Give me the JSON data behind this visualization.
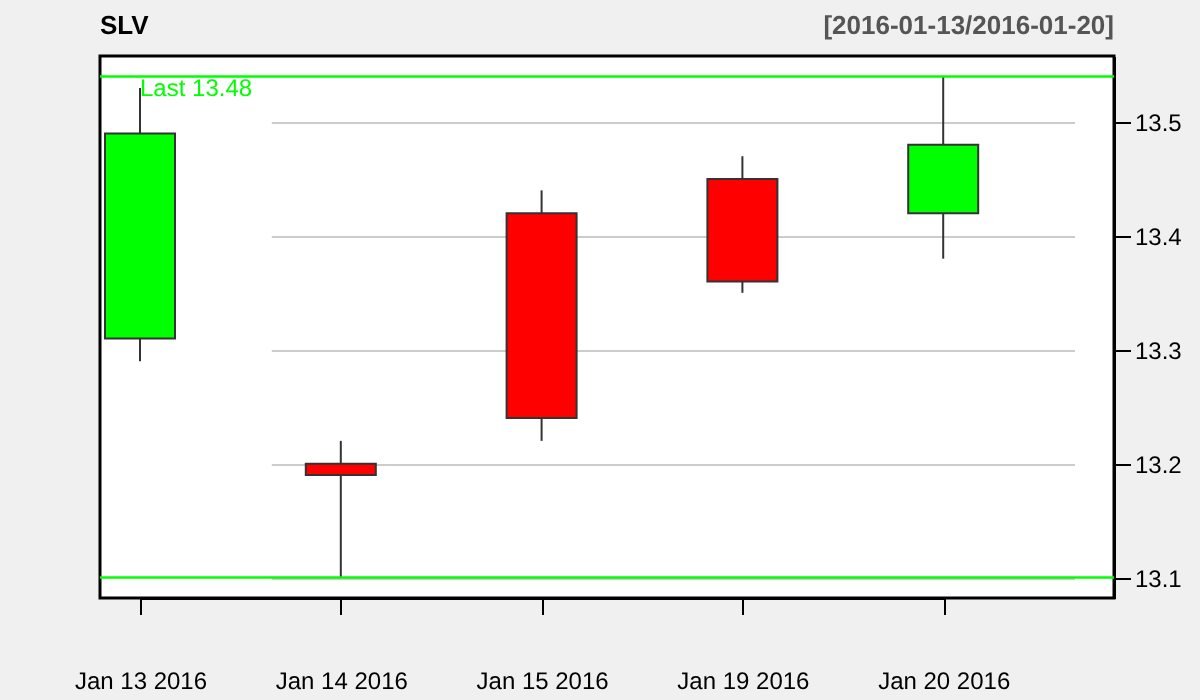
{
  "chart_data": {
    "type": "candlestick",
    "title": "SLV",
    "subtitle": "[2016-01-13/2016-01-20]",
    "categories": [
      "Jan 13 2016",
      "Jan 14 2016",
      "Jan 15 2016",
      "Jan 19 2016",
      "Jan 20 2016"
    ],
    "ohlc": [
      [
        13.31,
        13.53,
        13.29,
        13.49
      ],
      [
        13.2,
        13.22,
        13.1,
        13.19
      ],
      [
        13.42,
        13.44,
        13.22,
        13.24
      ],
      [
        13.45,
        13.47,
        13.35,
        13.36
      ],
      [
        13.42,
        13.54,
        13.38,
        13.48
      ]
    ],
    "colors": [
      "#00ff00",
      "#ff0000",
      "#ff0000",
      "#ff0000",
      "#00ff00"
    ],
    "ylim": [
      13.082,
      13.558
    ],
    "yticks": [
      13.1,
      13.2,
      13.3,
      13.4,
      13.5
    ],
    "ref_lines": [
      {
        "axis": "y",
        "value": 13.54,
        "label": "Last 13.48",
        "color": "#00ff00"
      },
      {
        "axis": "y",
        "value": 13.1,
        "label": null,
        "color": "#00ff00"
      }
    ],
    "grid": "y"
  }
}
